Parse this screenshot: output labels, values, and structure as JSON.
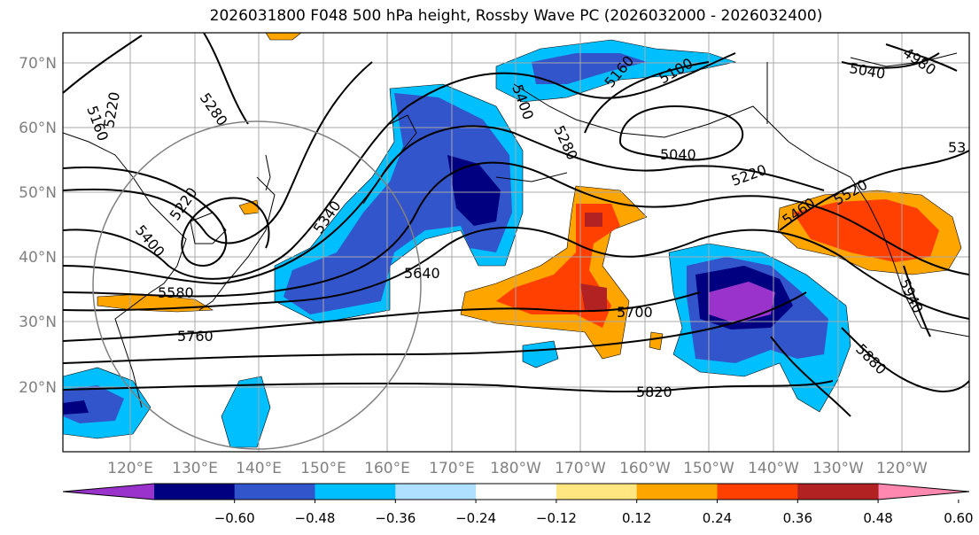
{
  "title": "2026031800 F048 500 hPa height, Rossby Wave PC (2026032000 - 2026032400)",
  "lat_labels": [
    "70°N",
    "60°N",
    "50°N",
    "40°N",
    "30°N",
    "20°N"
  ],
  "lon_labels": [
    "120°E",
    "130°E",
    "140°E",
    "150°E",
    "160°E",
    "170°E",
    "180°W",
    "170°W",
    "160°W",
    "150°W",
    "140°W",
    "130°W",
    "120°W"
  ],
  "colorbar": {
    "ticks": [
      "−0.60",
      "−0.48",
      "−0.36",
      "−0.24",
      "−0.12",
      "0.12",
      "0.24",
      "0.36",
      "0.48",
      "0.60"
    ],
    "colors": [
      "#9933cc",
      "#000080",
      "#3355cc",
      "#00bfff",
      "#b0e0ff",
      "#ffffff",
      "#ffe680",
      "#ffa500",
      "#ff4000",
      "#b22222",
      "#ff88b0"
    ]
  },
  "contour_labels": [
    "5160",
    "5220",
    "5280",
    "5220",
    "5400",
    "5580",
    "5760",
    "5340",
    "5640",
    "5400",
    "5160",
    "5280",
    "5040",
    "5100",
    "5040",
    "4980",
    "5220",
    "5460",
    "5520",
    "53",
    "5700",
    "5820",
    "5880",
    "5940"
  ]
}
